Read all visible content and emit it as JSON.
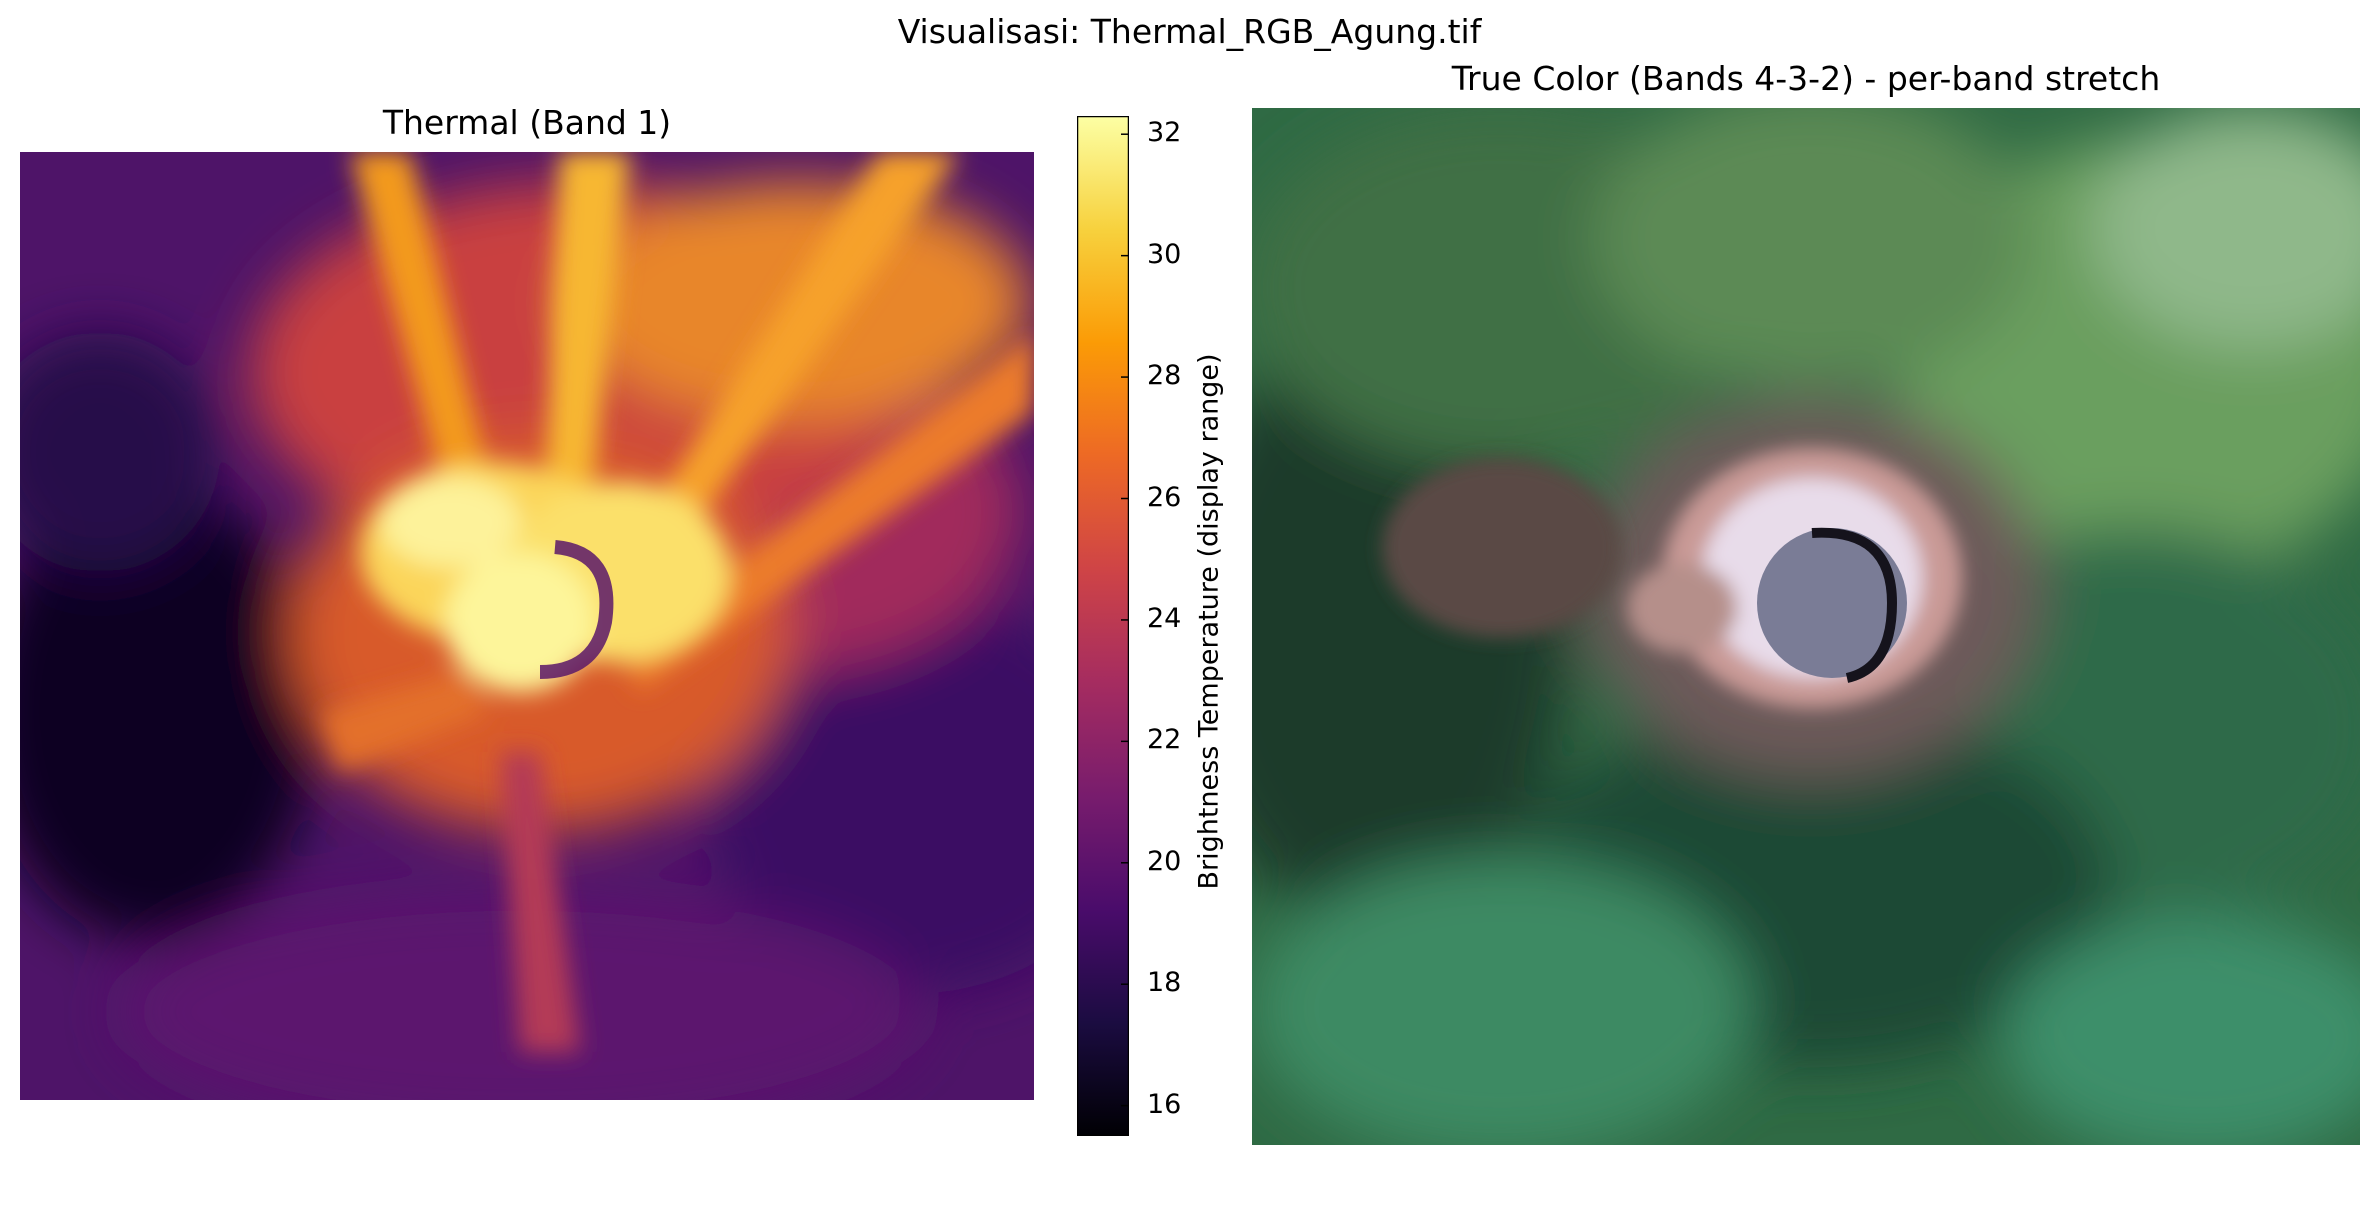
{
  "figure": {
    "suptitle": "Visualisasi: Thermal_RGB_Agung.tif"
  },
  "thermal_panel": {
    "title": "Thermal (Band 1)",
    "colormap": "inferno",
    "colormap_stops": [
      "#000004",
      "#1b0c41",
      "#4a0c6b",
      "#781c6d",
      "#a52c60",
      "#cf4446",
      "#ed6925",
      "#fb9b06",
      "#f7d13d",
      "#fcffa4"
    ],
    "colorbar": {
      "label": "Brightness Temperature (display range)",
      "range": [
        15.5,
        32.3
      ],
      "ticks": [
        "16",
        "18",
        "20",
        "22",
        "24",
        "26",
        "28",
        "30",
        "32"
      ]
    }
  },
  "truecolor_panel": {
    "title": "True Color (Bands 4-3-2) - per-band stretch"
  }
}
